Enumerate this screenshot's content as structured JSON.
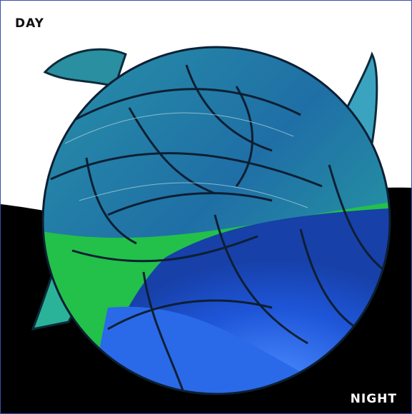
{
  "labels": {
    "day": "DAY",
    "night": "NIGHT"
  }
}
